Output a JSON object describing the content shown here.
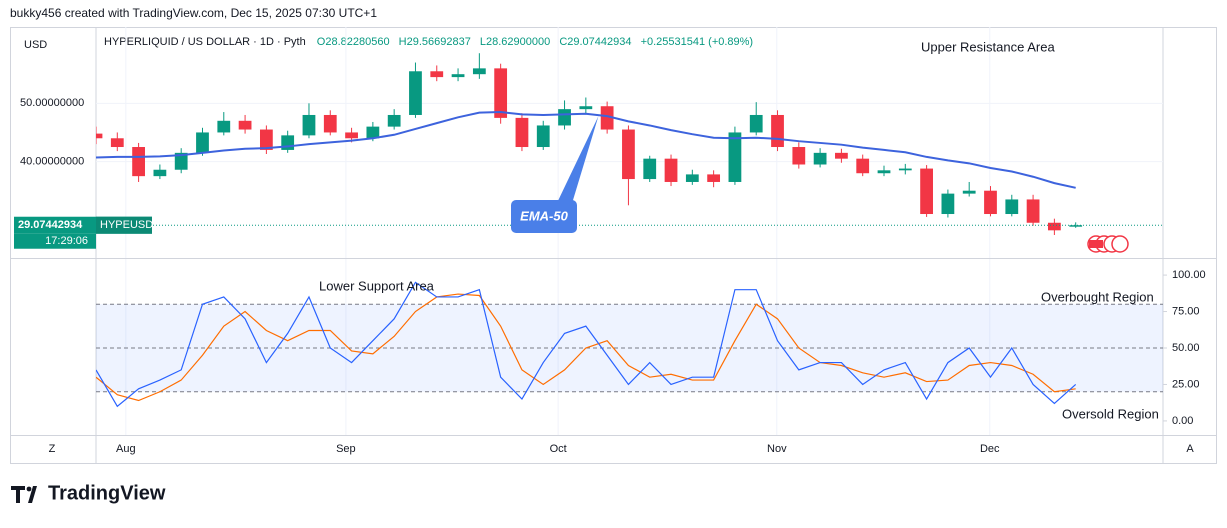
{
  "header": {
    "author": "bukky456 created with TradingView.com, Dec 15, 2025 07:30 UTC+1",
    "currency": "USD",
    "symbol": "HYPERLIQUID / US DOLLAR · 1D · Pyth",
    "ohlc": [
      "O28.82280560",
      "H29.56692837",
      "L28.62900000",
      "C29.07442934"
    ],
    "change": "+0.25531541 (+0.89%)"
  },
  "footer": {
    "brand": "TradingView"
  },
  "axis_buttons": [
    "Z",
    "A"
  ],
  "chart_data": [
    {
      "type": "candlestick",
      "up_color": "#089981",
      "down_color": "#f23645",
      "x": [
        0,
        3,
        6,
        9,
        12,
        15,
        18,
        21,
        24,
        27,
        30,
        33,
        36,
        39,
        42,
        45,
        48,
        51,
        54,
        57,
        60,
        63,
        66,
        69,
        72,
        75,
        78,
        81,
        84,
        87,
        90,
        93,
        96,
        99,
        102,
        105,
        108,
        111,
        114,
        117,
        120,
        123,
        126,
        129,
        132,
        135,
        138
      ],
      "open": [
        44.8,
        44.0,
        42.5,
        37.5,
        38.6,
        41.5,
        45.0,
        47.0,
        45.5,
        42.0,
        44.5,
        48.0,
        45.0,
        44.0,
        46.0,
        48.0,
        55.5,
        54.5,
        55.0,
        56.0,
        47.5,
        42.5,
        46.2,
        49.0,
        49.5,
        45.5,
        37.0,
        40.5,
        36.5,
        37.8,
        36.5,
        45.0,
        48.0,
        42.5,
        39.5,
        41.5,
        40.5,
        38.0,
        38.5,
        38.8,
        31.0,
        34.5,
        35.0,
        31.0,
        33.5,
        29.5,
        28.8228056
      ],
      "high": [
        46.0,
        45.0,
        43.2,
        39.5,
        42.3,
        45.8,
        48.5,
        48.0,
        46.2,
        45.3,
        50.0,
        48.8,
        45.8,
        46.8,
        49.0,
        57.0,
        56.5,
        56.0,
        58.6,
        56.8,
        48.3,
        47.0,
        50.5,
        51.0,
        50.3,
        46.2,
        41.0,
        41.2,
        38.6,
        38.5,
        46.0,
        50.2,
        48.8,
        43.3,
        42.3,
        42.2,
        41.2,
        39.3,
        39.6,
        39.4,
        35.2,
        36.5,
        35.8,
        34.3,
        34.3,
        30.2,
        29.56692837
      ],
      "low": [
        43.0,
        41.8,
        36.5,
        37.0,
        38.0,
        41.0,
        44.5,
        44.8,
        41.3,
        41.5,
        44.0,
        44.5,
        43.3,
        43.5,
        45.5,
        47.5,
        53.8,
        53.8,
        54.2,
        46.5,
        41.8,
        42.0,
        45.5,
        48.3,
        44.8,
        32.5,
        36.5,
        35.8,
        36.0,
        35.6,
        36.0,
        44.5,
        41.8,
        38.8,
        39.0,
        39.8,
        37.5,
        37.5,
        37.8,
        30.5,
        30.4,
        34.0,
        30.6,
        30.6,
        29.0,
        27.4,
        28.629
      ],
      "close": [
        44.0,
        42.5,
        37.5,
        38.6,
        41.5,
        45.0,
        47.0,
        45.5,
        42.0,
        44.5,
        48.0,
        45.0,
        44.0,
        46.0,
        48.0,
        55.5,
        54.5,
        55.0,
        56.0,
        47.5,
        42.5,
        46.2,
        49.0,
        49.5,
        45.5,
        37.0,
        40.5,
        36.5,
        37.8,
        36.5,
        45.0,
        48.0,
        42.5,
        39.5,
        41.5,
        40.5,
        38.0,
        38.5,
        38.8,
        31.0,
        34.5,
        35.0,
        31.0,
        33.5,
        29.5,
        28.2,
        29.07442934
      ],
      "series": [
        {
          "name": "EMA-50",
          "color": "#3d63dd",
          "values": [
            40.7,
            40.8,
            40.8,
            40.9,
            41.1,
            41.5,
            41.9,
            42.2,
            42.3,
            42.6,
            43.0,
            43.3,
            43.6,
            44.0,
            44.6,
            45.6,
            46.6,
            47.6,
            48.4,
            48.5,
            48.1,
            48.0,
            48.1,
            48.2,
            47.8,
            46.9,
            46.2,
            45.4,
            44.7,
            44.1,
            44.0,
            44.1,
            43.9,
            43.5,
            43.2,
            42.9,
            42.4,
            42.0,
            41.6,
            40.8,
            40.2,
            39.7,
            38.9,
            38.3,
            37.4,
            36.3,
            35.5
          ]
        }
      ],
      "xlim": [
        0,
        150.3
      ],
      "xticks": [
        {
          "value": 4.2,
          "label": "Aug"
        },
        {
          "value": 35.2,
          "label": "Sep"
        },
        {
          "value": 65.1,
          "label": "Oct"
        },
        {
          "value": 95.9,
          "label": "Nov"
        },
        {
          "value": 125.9,
          "label": "Dec"
        }
      ],
      "ylim": [
        23.45,
        63.1
      ],
      "yticks": [
        {
          "value": 40,
          "label": "40.00000000"
        },
        {
          "value": 50,
          "label": "50.00000000"
        }
      ],
      "last_price": 29.07442934,
      "ticker": "HYPEUSD",
      "countdown": "17:29:06",
      "annotations": [
        "Upper Resistance Area",
        "Lower Support Area"
      ],
      "grid": true
    },
    {
      "type": "line",
      "x": [
        0,
        3,
        6,
        9,
        12,
        15,
        18,
        21,
        24,
        27,
        30,
        33,
        36,
        39,
        42,
        45,
        48,
        51,
        54,
        57,
        60,
        63,
        66,
        69,
        72,
        75,
        78,
        81,
        84,
        87,
        90,
        93,
        96,
        99,
        102,
        105,
        108,
        111,
        114,
        117,
        120,
        123,
        126,
        129,
        132,
        135,
        138
      ],
      "series": [
        {
          "color": "#2962ff",
          "values": [
            35,
            10,
            22,
            28,
            35,
            80,
            85,
            70,
            40,
            60,
            85,
            50,
            40,
            55,
            70,
            95,
            85,
            85,
            90,
            30,
            15,
            40,
            60,
            65,
            45,
            25,
            40,
            25,
            30,
            30,
            90,
            90,
            55,
            35,
            40,
            40,
            25,
            35,
            40,
            15,
            40,
            50,
            30,
            50,
            25,
            12,
            25
          ]
        },
        {
          "color": "#ff6d00",
          "values": [
            30,
            18,
            14,
            20,
            28,
            45,
            65,
            75,
            62,
            55,
            62,
            62,
            48,
            46,
            58,
            75,
            85,
            87,
            86,
            65,
            35,
            25,
            35,
            50,
            55,
            38,
            30,
            32,
            28,
            28,
            55,
            80,
            70,
            50,
            40,
            38,
            33,
            30,
            33,
            27,
            28,
            38,
            40,
            38,
            32,
            20,
            22
          ]
        }
      ],
      "xlim": [
        0,
        150.3
      ],
      "ylim": [
        -9.66,
        111.03
      ],
      "yticks": [
        {
          "value": 0,
          "label": "0.00"
        },
        {
          "value": 25,
          "label": "25.00"
        },
        {
          "value": 50,
          "label": "50.00"
        },
        {
          "value": 75,
          "label": "75.00"
        },
        {
          "value": 100,
          "label": "100.00"
        }
      ],
      "levels": [
        80,
        50,
        20
      ],
      "annotations": [
        "Overbought Region",
        "Oversold Region"
      ]
    }
  ]
}
